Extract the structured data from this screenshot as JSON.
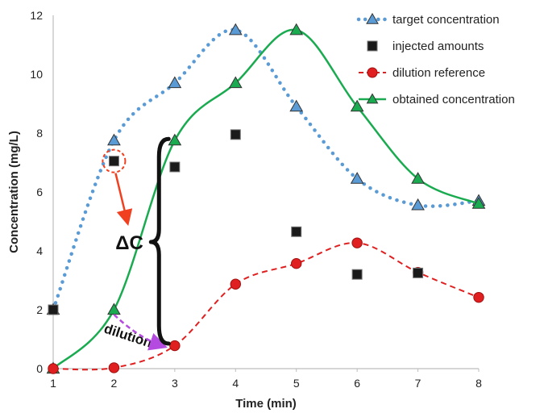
{
  "chart_data": {
    "type": "line",
    "xlabel": "Time (min)",
    "ylabel": "Concentration (mg/L)",
    "xlim": [
      1,
      8
    ],
    "ylim": [
      0,
      12
    ],
    "xticks": [
      1,
      2,
      3,
      4,
      5,
      6,
      7,
      8
    ],
    "yticks": [
      0,
      2,
      4,
      6,
      8,
      10,
      12
    ],
    "grid": false,
    "legend_position": "top-right",
    "series": [
      {
        "name": "target concentration",
        "style": "dotted-line-triangle",
        "color": "#5b9bd5",
        "marker_color": "#5b9bd5",
        "x": [
          1,
          2,
          3,
          4,
          5,
          6,
          7,
          8
        ],
        "y": [
          2.0,
          7.75,
          9.7,
          11.5,
          8.9,
          6.45,
          5.55,
          5.7
        ]
      },
      {
        "name": "injected amounts",
        "style": "square-marker",
        "color": "#1a1a1a",
        "x": [
          1,
          2,
          3,
          4,
          5,
          6,
          7,
          8
        ],
        "y": [
          2.0,
          7.05,
          6.85,
          7.95,
          4.65,
          3.2,
          3.25,
          null
        ]
      },
      {
        "name": "dilution reference",
        "style": "dashed-line-circle",
        "color": "#e02020",
        "marker_color": "#e02020",
        "x": [
          1,
          2,
          3,
          4,
          5,
          6,
          7,
          8
        ],
        "y": [
          0.0,
          0.03,
          0.78,
          2.87,
          3.57,
          4.27,
          3.27,
          2.42
        ]
      },
      {
        "name": "obtained concentration",
        "style": "solid-line-triangle",
        "color": "#1aab50",
        "marker_color": "#1aab50",
        "x": [
          1,
          2,
          3,
          4,
          5,
          6,
          7,
          8
        ],
        "y": [
          0.0,
          2.0,
          7.75,
          9.7,
          11.5,
          8.9,
          6.45,
          5.6
        ]
      }
    ],
    "annotations": {
      "delta_label": "ΔC",
      "dilution_label": "dilution"
    }
  }
}
